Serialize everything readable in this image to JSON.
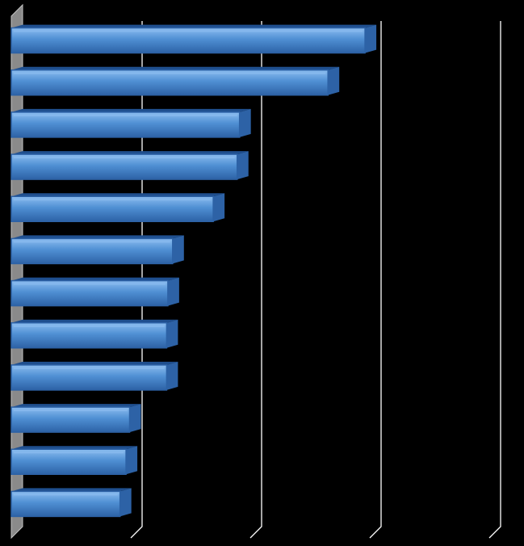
{
  "chart_data": {
    "type": "bar",
    "orientation": "horizontal",
    "style": "3d",
    "title": "",
    "xlabel": "",
    "ylabel": "",
    "categories": [
      "",
      "",
      "",
      "",
      "",
      "",
      "",
      "",
      "",
      "",
      "",
      ""
    ],
    "values": [
      2.96,
      2.65,
      1.91,
      1.89,
      1.69,
      1.35,
      1.31,
      1.3,
      1.3,
      0.99,
      0.96,
      0.91
    ],
    "xlim": [
      0,
      4
    ],
    "grid": true,
    "legend": "none",
    "colors": {
      "background": "#000000",
      "bar_fill": "#4f8fd3",
      "bar_highlight": "#8cbdf0",
      "bar_edge": "#2d62a6",
      "bar_top": "#1f4f8f",
      "wall": "#8a8a8a",
      "wall_edge": "#c0c0c0",
      "gridline": "#ffffff"
    }
  }
}
